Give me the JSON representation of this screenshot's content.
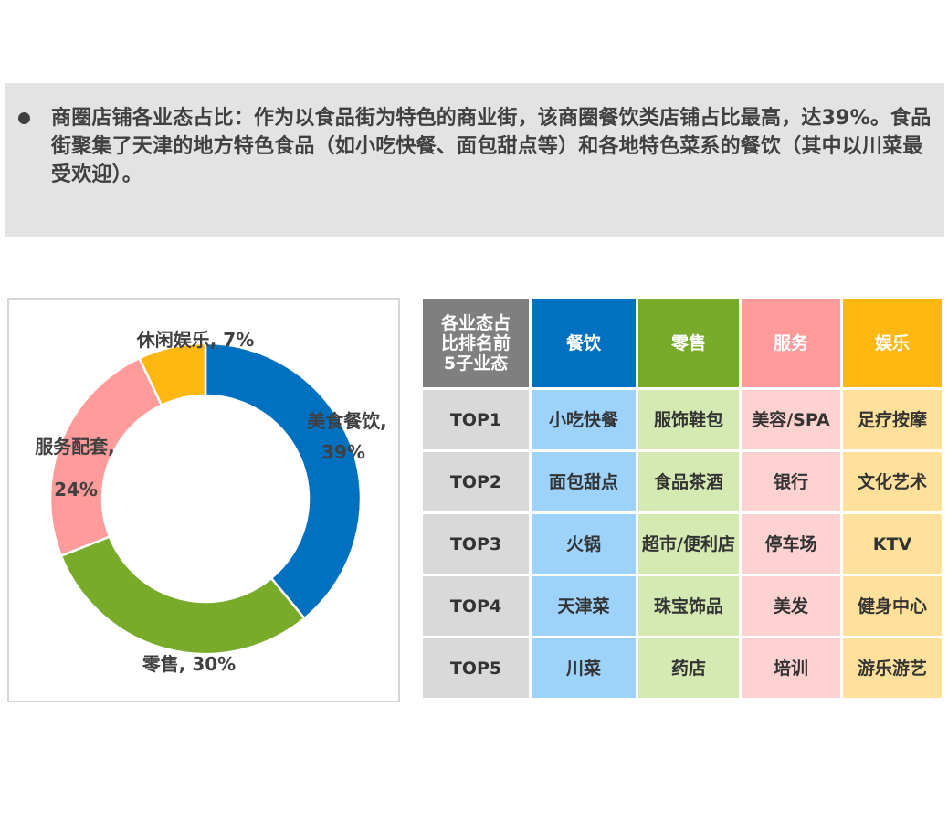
{
  "note": {
    "text": "商圈店铺各业态占比：作为以食品街为特色的商业街，该商圈餐饮类店铺占比最高，达39%。食品街聚集了天津的地方特色食品（如小吃快餐、面包甜点等）和各地特色菜系的餐饮（其中以川菜最受欢迎）。"
  },
  "chart_data": {
    "type": "pie",
    "donut": true,
    "slices": [
      {
        "name": "美食餐饮",
        "label": "美食餐饮,",
        "value_label": "39%",
        "value": 39,
        "color": "#0070c0"
      },
      {
        "name": "零售",
        "label": "零售, 30%",
        "value_label": "",
        "value": 30,
        "color": "#78ab2a"
      },
      {
        "name": "服务配套",
        "label": "服务配套,",
        "value_label": "24%",
        "value": 24,
        "color": "#ff9b9b"
      },
      {
        "name": "休闲娱乐",
        "label": "休闲娱乐, 7%",
        "value_label": "",
        "value": 7,
        "color": "#ffb812"
      }
    ]
  },
  "table": {
    "corner": [
      "各业态占",
      "比排名前",
      "5子业态"
    ],
    "columns": [
      {
        "name": "餐饮",
        "header_color": "#0070c0",
        "cell_color": "#9dd3fb"
      },
      {
        "name": "零售",
        "header_color": "#78ab2a",
        "cell_color": "#d5eab3"
      },
      {
        "name": "服务",
        "header_color": "#ff9b9b",
        "cell_color": "#ffd2d2"
      },
      {
        "name": "娱乐",
        "header_color": "#ffb812",
        "cell_color": "#ffe19b"
      }
    ],
    "rows": [
      {
        "rank": "TOP1",
        "cells": [
          "小吃快餐",
          "服饰鞋包",
          "美容/SPA",
          "足疗按摩"
        ]
      },
      {
        "rank": "TOP2",
        "cells": [
          "面包甜点",
          "食品茶酒",
          "银行",
          "文化艺术"
        ]
      },
      {
        "rank": "TOP3",
        "cells": [
          "火锅",
          "超市/便利店",
          "停车场",
          "KTV"
        ]
      },
      {
        "rank": "TOP4",
        "cells": [
          "天津菜",
          "珠宝饰品",
          "美发",
          "健身中心"
        ]
      },
      {
        "rank": "TOP5",
        "cells": [
          "川菜",
          "药店",
          "培训",
          "游乐游艺"
        ]
      }
    ]
  }
}
